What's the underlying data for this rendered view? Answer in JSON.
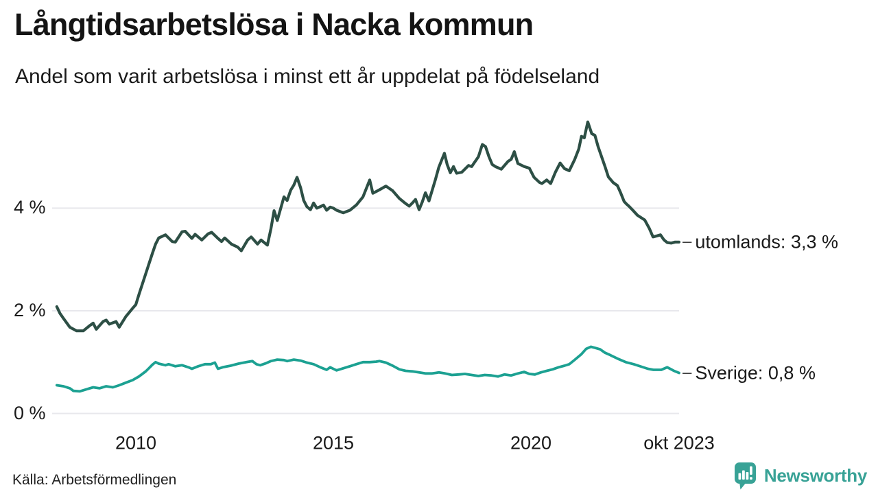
{
  "chart_data": {
    "type": "line",
    "title": "Långtidsarbetslösa i Nacka kommun",
    "subtitle": "Andel som varit arbetslösa i minst ett år uppdelat på födelseland",
    "source": "Källa: Arbetsförmedlingen",
    "grid": true,
    "legend_position": "end-of-line-labels",
    "end_label_dash": "–",
    "x_axis": {
      "unit": "year",
      "range": [
        2008,
        2023.83
      ],
      "ticks": [
        {
          "value": 2010,
          "label": "2010"
        },
        {
          "value": 2015,
          "label": "2015"
        },
        {
          "value": 2020,
          "label": "2020"
        },
        {
          "value": 2023.75,
          "label": "okt 2023"
        }
      ]
    },
    "y_axis": {
      "unit": "%",
      "range": [
        0,
        6
      ],
      "ticks": [
        {
          "value": 0,
          "label": "0 %"
        },
        {
          "value": 2,
          "label": "2 %"
        },
        {
          "value": 4,
          "label": "4 %"
        }
      ]
    },
    "series": [
      {
        "name": "utomlands",
        "end_label": "utomlands: 3,3 %",
        "last_value": 3.3,
        "color": "#2d4f45",
        "points": [
          [
            2008,
            2.08
          ],
          [
            2008.08,
            1.95
          ],
          [
            2008.17,
            1.85
          ],
          [
            2008.33,
            1.68
          ],
          [
            2008.5,
            1.61
          ],
          [
            2008.67,
            1.61
          ],
          [
            2008.83,
            1.71
          ],
          [
            2008.92,
            1.76
          ],
          [
            2009,
            1.64
          ],
          [
            2009.17,
            1.79
          ],
          [
            2009.25,
            1.82
          ],
          [
            2009.33,
            1.74
          ],
          [
            2009.5,
            1.79
          ],
          [
            2009.58,
            1.68
          ],
          [
            2009.75,
            1.89
          ],
          [
            2009.92,
            2.05
          ],
          [
            2010,
            2.12
          ],
          [
            2010.08,
            2.32
          ],
          [
            2010.25,
            2.72
          ],
          [
            2010.42,
            3.12
          ],
          [
            2010.5,
            3.3
          ],
          [
            2010.58,
            3.42
          ],
          [
            2010.75,
            3.48
          ],
          [
            2010.92,
            3.35
          ],
          [
            2011,
            3.34
          ],
          [
            2011.17,
            3.54
          ],
          [
            2011.25,
            3.55
          ],
          [
            2011.42,
            3.41
          ],
          [
            2011.5,
            3.49
          ],
          [
            2011.67,
            3.38
          ],
          [
            2011.83,
            3.5
          ],
          [
            2011.92,
            3.53
          ],
          [
            2012.08,
            3.41
          ],
          [
            2012.17,
            3.35
          ],
          [
            2012.25,
            3.42
          ],
          [
            2012.42,
            3.3
          ],
          [
            2012.58,
            3.24
          ],
          [
            2012.67,
            3.17
          ],
          [
            2012.83,
            3.38
          ],
          [
            2012.92,
            3.44
          ],
          [
            2013.08,
            3.3
          ],
          [
            2013.17,
            3.38
          ],
          [
            2013.33,
            3.28
          ],
          [
            2013.42,
            3.6
          ],
          [
            2013.5,
            3.95
          ],
          [
            2013.58,
            3.76
          ],
          [
            2013.75,
            4.22
          ],
          [
            2013.83,
            4.15
          ],
          [
            2013.92,
            4.35
          ],
          [
            2014,
            4.45
          ],
          [
            2014.08,
            4.6
          ],
          [
            2014.17,
            4.4
          ],
          [
            2014.25,
            4.15
          ],
          [
            2014.33,
            4.03
          ],
          [
            2014.42,
            3.97
          ],
          [
            2014.5,
            4.1
          ],
          [
            2014.58,
            4.0
          ],
          [
            2014.67,
            4.03
          ],
          [
            2014.75,
            4.06
          ],
          [
            2014.83,
            3.96
          ],
          [
            2014.92,
            4.02
          ],
          [
            2015,
            4.0
          ],
          [
            2015.08,
            3.96
          ],
          [
            2015.25,
            3.91
          ],
          [
            2015.42,
            3.96
          ],
          [
            2015.58,
            4.06
          ],
          [
            2015.75,
            4.22
          ],
          [
            2015.92,
            4.55
          ],
          [
            2016,
            4.29
          ],
          [
            2016.17,
            4.36
          ],
          [
            2016.33,
            4.43
          ],
          [
            2016.5,
            4.34
          ],
          [
            2016.67,
            4.19
          ],
          [
            2016.83,
            4.09
          ],
          [
            2016.92,
            4.04
          ],
          [
            2017,
            4.1
          ],
          [
            2017.08,
            4.17
          ],
          [
            2017.17,
            3.97
          ],
          [
            2017.25,
            4.12
          ],
          [
            2017.33,
            4.3
          ],
          [
            2017.42,
            4.14
          ],
          [
            2017.58,
            4.55
          ],
          [
            2017.67,
            4.8
          ],
          [
            2017.81,
            5.07
          ],
          [
            2017.88,
            4.85
          ],
          [
            2017.96,
            4.69
          ],
          [
            2018.04,
            4.81
          ],
          [
            2018.12,
            4.68
          ],
          [
            2018.25,
            4.7
          ],
          [
            2018.42,
            4.83
          ],
          [
            2018.5,
            4.81
          ],
          [
            2018.58,
            4.9
          ],
          [
            2018.67,
            5.0
          ],
          [
            2018.77,
            5.24
          ],
          [
            2018.85,
            5.2
          ],
          [
            2018.94,
            5.0
          ],
          [
            2019.02,
            4.85
          ],
          [
            2019.1,
            4.81
          ],
          [
            2019.25,
            4.76
          ],
          [
            2019.42,
            4.91
          ],
          [
            2019.5,
            4.95
          ],
          [
            2019.58,
            5.1
          ],
          [
            2019.67,
            4.87
          ],
          [
            2019.83,
            4.81
          ],
          [
            2019.96,
            4.78
          ],
          [
            2020.08,
            4.6
          ],
          [
            2020.22,
            4.5
          ],
          [
            2020.28,
            4.48
          ],
          [
            2020.4,
            4.55
          ],
          [
            2020.5,
            4.48
          ],
          [
            2020.62,
            4.7
          ],
          [
            2020.74,
            4.88
          ],
          [
            2020.85,
            4.77
          ],
          [
            2020.97,
            4.73
          ],
          [
            2021.11,
            4.95
          ],
          [
            2021.21,
            5.15
          ],
          [
            2021.28,
            5.4
          ],
          [
            2021.35,
            5.37
          ],
          [
            2021.44,
            5.68
          ],
          [
            2021.54,
            5.45
          ],
          [
            2021.62,
            5.42
          ],
          [
            2021.7,
            5.2
          ],
          [
            2021.79,
            5.0
          ],
          [
            2021.88,
            4.8
          ],
          [
            2021.96,
            4.61
          ],
          [
            2022.08,
            4.5
          ],
          [
            2022.19,
            4.44
          ],
          [
            2022.27,
            4.3
          ],
          [
            2022.36,
            4.13
          ],
          [
            2022.42,
            4.08
          ],
          [
            2022.48,
            4.04
          ],
          [
            2022.58,
            3.96
          ],
          [
            2022.7,
            3.86
          ],
          [
            2022.88,
            3.77
          ],
          [
            2023,
            3.6
          ],
          [
            2023.09,
            3.44
          ],
          [
            2023.19,
            3.46
          ],
          [
            2023.28,
            3.48
          ],
          [
            2023.37,
            3.38
          ],
          [
            2023.45,
            3.33
          ],
          [
            2023.55,
            3.32
          ],
          [
            2023.65,
            3.34
          ],
          [
            2023.75,
            3.34
          ]
        ]
      },
      {
        "name": "sverige",
        "end_label": "Sverige: 0,8 %",
        "last_value": 0.8,
        "color": "#1ca192",
        "points": [
          [
            2008,
            0.55
          ],
          [
            2008.17,
            0.53
          ],
          [
            2008.33,
            0.49
          ],
          [
            2008.42,
            0.44
          ],
          [
            2008.58,
            0.43
          ],
          [
            2008.75,
            0.47
          ],
          [
            2008.92,
            0.51
          ],
          [
            2009.08,
            0.49
          ],
          [
            2009.25,
            0.53
          ],
          [
            2009.42,
            0.51
          ],
          [
            2009.58,
            0.55
          ],
          [
            2009.75,
            0.6
          ],
          [
            2009.92,
            0.65
          ],
          [
            2010.08,
            0.72
          ],
          [
            2010.25,
            0.82
          ],
          [
            2010.33,
            0.88
          ],
          [
            2010.42,
            0.95
          ],
          [
            2010.5,
            1.0
          ],
          [
            2010.58,
            0.97
          ],
          [
            2010.75,
            0.94
          ],
          [
            2010.83,
            0.96
          ],
          [
            2011,
            0.92
          ],
          [
            2011.17,
            0.94
          ],
          [
            2011.33,
            0.9
          ],
          [
            2011.42,
            0.87
          ],
          [
            2011.58,
            0.92
          ],
          [
            2011.75,
            0.96
          ],
          [
            2011.9,
            0.96
          ],
          [
            2012,
            0.99
          ],
          [
            2012.08,
            0.87
          ],
          [
            2012.2,
            0.9
          ],
          [
            2012.4,
            0.93
          ],
          [
            2012.6,
            0.97
          ],
          [
            2012.8,
            1.0
          ],
          [
            2012.95,
            1.02
          ],
          [
            2013.05,
            0.96
          ],
          [
            2013.15,
            0.94
          ],
          [
            2013.3,
            0.98
          ],
          [
            2013.42,
            1.02
          ],
          [
            2013.58,
            1.05
          ],
          [
            2013.75,
            1.04
          ],
          [
            2013.83,
            1.02
          ],
          [
            2014,
            1.05
          ],
          [
            2014.17,
            1.03
          ],
          [
            2014.33,
            0.99
          ],
          [
            2014.5,
            0.96
          ],
          [
            2014.67,
            0.9
          ],
          [
            2014.83,
            0.85
          ],
          [
            2014.92,
            0.9
          ],
          [
            2015.08,
            0.84
          ],
          [
            2015.25,
            0.88
          ],
          [
            2015.42,
            0.92
          ],
          [
            2015.58,
            0.96
          ],
          [
            2015.75,
            1.0
          ],
          [
            2015.92,
            1.0
          ],
          [
            2016.08,
            1.01
          ],
          [
            2016.17,
            1.02
          ],
          [
            2016.33,
            0.99
          ],
          [
            2016.5,
            0.93
          ],
          [
            2016.67,
            0.86
          ],
          [
            2016.83,
            0.83
          ],
          [
            2017,
            0.82
          ],
          [
            2017.17,
            0.8
          ],
          [
            2017.33,
            0.78
          ],
          [
            2017.5,
            0.78
          ],
          [
            2017.67,
            0.8
          ],
          [
            2017.83,
            0.78
          ],
          [
            2018,
            0.75
          ],
          [
            2018.17,
            0.76
          ],
          [
            2018.33,
            0.77
          ],
          [
            2018.5,
            0.75
          ],
          [
            2018.67,
            0.73
          ],
          [
            2018.83,
            0.75
          ],
          [
            2019,
            0.74
          ],
          [
            2019.17,
            0.72
          ],
          [
            2019.33,
            0.76
          ],
          [
            2019.5,
            0.74
          ],
          [
            2019.67,
            0.78
          ],
          [
            2019.83,
            0.81
          ],
          [
            2019.96,
            0.77
          ],
          [
            2020.1,
            0.76
          ],
          [
            2020.25,
            0.8
          ],
          [
            2020.4,
            0.83
          ],
          [
            2020.55,
            0.86
          ],
          [
            2020.7,
            0.9
          ],
          [
            2020.85,
            0.93
          ],
          [
            2020.97,
            0.96
          ],
          [
            2021.1,
            1.04
          ],
          [
            2021.27,
            1.15
          ],
          [
            2021.4,
            1.26
          ],
          [
            2021.52,
            1.3
          ],
          [
            2021.62,
            1.28
          ],
          [
            2021.75,
            1.25
          ],
          [
            2021.88,
            1.18
          ],
          [
            2022,
            1.14
          ],
          [
            2022.19,
            1.07
          ],
          [
            2022.4,
            1.0
          ],
          [
            2022.6,
            0.96
          ],
          [
            2022.8,
            0.91
          ],
          [
            2022.96,
            0.87
          ],
          [
            2023.1,
            0.85
          ],
          [
            2023.3,
            0.85
          ],
          [
            2023.45,
            0.9
          ],
          [
            2023.55,
            0.86
          ],
          [
            2023.62,
            0.83
          ],
          [
            2023.75,
            0.79
          ]
        ]
      }
    ]
  },
  "branding": {
    "name": "Newsworthy"
  }
}
